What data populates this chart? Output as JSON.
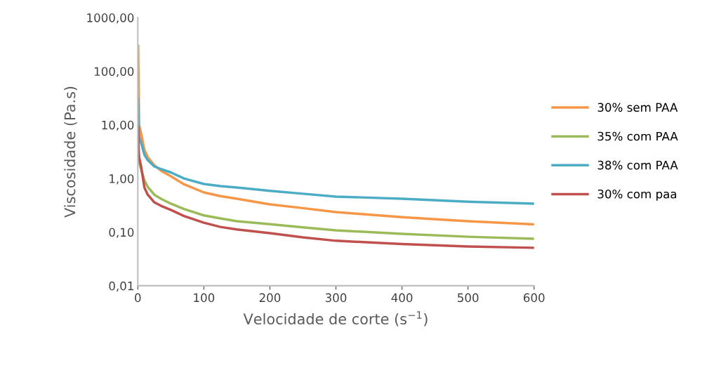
{
  "chart_data": {
    "type": "line",
    "xlabel": "Velocidade de corte (s$^{−1}$)",
    "ylabel": "Viscosidade (Pa.s)",
    "log": "y",
    "x": [
      0.5,
      1,
      2,
      5,
      10,
      15,
      25,
      35,
      50,
      70,
      100,
      125,
      150,
      200,
      250,
      300,
      400,
      500,
      600
    ],
    "xlim": [
      0,
      600
    ],
    "xticks": [
      0,
      100,
      200,
      300,
      400,
      500,
      600
    ],
    "ylim": [
      0.01,
      1000
    ],
    "yticks": [
      {
        "value": 0.01,
        "label": "0,01"
      },
      {
        "value": 0.1,
        "label": "0,10"
      },
      {
        "value": 1,
        "label": "1,00"
      },
      {
        "value": 10,
        "label": "10,00"
      },
      {
        "value": 100,
        "label": "100,00"
      },
      {
        "value": 1000,
        "label": "1000,00"
      }
    ],
    "grid": false,
    "legend": "right",
    "marker": "none",
    "line_style": "solid",
    "series": [
      {
        "name": "30% sem PAA",
        "color": "#f79646",
        "x": [
          0.5,
          2,
          5,
          10,
          15,
          25,
          35,
          50,
          70,
          100,
          125,
          150,
          200,
          250,
          300,
          400,
          500,
          600
        ],
        "values": [
          295,
          10,
          6.9,
          3.4,
          2.5,
          1.77,
          1.4,
          1.1,
          0.78,
          0.55,
          0.47,
          0.42,
          0.33,
          0.28,
          0.236,
          0.19,
          0.16,
          0.14
        ]
      },
      {
        "name": "35% com PAA",
        "color": "#9bbb59",
        "values": [
          8,
          3,
          2,
          1.5,
          0.92,
          0.7,
          0.5,
          0.42,
          0.34,
          0.27,
          0.205,
          0.18,
          0.16,
          0.141,
          0.123,
          0.108,
          0.093,
          0.082,
          0.075
        ]
      },
      {
        "name": "38% com PAA",
        "color": "#4bacc6",
        "values": [
          31,
          10,
          6,
          4.6,
          2.78,
          2.2,
          1.68,
          1.5,
          1.3,
          1.0,
          0.79,
          0.72,
          0.68,
          0.59,
          0.52,
          0.46,
          0.42,
          0.37,
          0.34
        ]
      },
      {
        "name": "30% com paa",
        "color": "#c0504d",
        "values": [
          9.3,
          4,
          2.5,
          1.68,
          0.68,
          0.5,
          0.36,
          0.31,
          0.26,
          0.2,
          0.15,
          0.125,
          0.112,
          0.096,
          0.08,
          0.069,
          0.06,
          0.054,
          0.051
        ]
      }
    ]
  }
}
